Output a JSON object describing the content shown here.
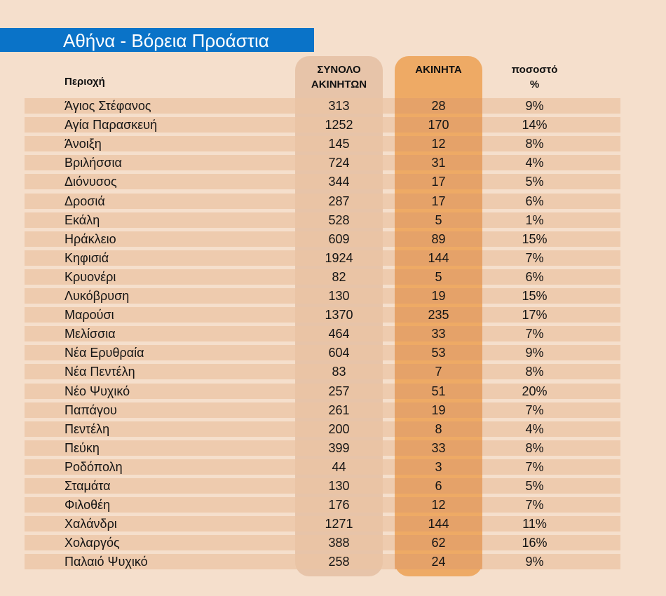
{
  "title": "Αθήνα - Βόρεια Προάστια",
  "colors": {
    "banner": "#0a73c8",
    "background": "#f5dfcc",
    "row_stripe": "#ebc4a4",
    "total_column": "#e4bfa2",
    "idle_column": "#eeaa65"
  },
  "headers": {
    "area": "Περιοχή",
    "total": "ΣΥΝΟΛΟ ΑΚΙΝΗΤΩΝ",
    "idle": "ΑΚΙΝΗΤΑ",
    "pct": "ποσοστό %"
  },
  "chart_data": {
    "type": "table",
    "title": "Αθήνα - Βόρεια Προάστια",
    "columns": [
      "Περιοχή",
      "ΣΥΝΟΛΟ ΑΚΙΝΗΤΩΝ",
      "ΑΚΙΝΗΤΑ",
      "ποσοστό %"
    ],
    "rows": [
      [
        "Άγιος Στέφανος",
        "313",
        "28",
        "9%"
      ],
      [
        "Αγία Παρασκευή",
        "1252",
        "170",
        "14%"
      ],
      [
        "Άνοιξη",
        "145",
        "12",
        "8%"
      ],
      [
        "Βριλήσσια",
        "724",
        "31",
        "4%"
      ],
      [
        "Διόνυσος",
        "344",
        "17",
        "5%"
      ],
      [
        "Δροσιά",
        "287",
        "17",
        "6%"
      ],
      [
        "Εκάλη",
        "528",
        "5",
        "1%"
      ],
      [
        "Ηράκλειο",
        "609",
        "89",
        "15%"
      ],
      [
        "Κηφισιά",
        "1924",
        "144",
        "7%"
      ],
      [
        "Κρυονέρι",
        "82",
        "5",
        "6%"
      ],
      [
        "Λυκόβρυση",
        "130",
        "19",
        "15%"
      ],
      [
        "Μαρούσι",
        "1370",
        "235",
        "17%"
      ],
      [
        "Μελίσσια",
        "464",
        "33",
        "7%"
      ],
      [
        "Νέα Ερυθραία",
        "604",
        "53",
        "9%"
      ],
      [
        "Νέα Πεντέλη",
        "83",
        "7",
        "8%"
      ],
      [
        "Νέο Ψυχικό",
        "257",
        "51",
        "20%"
      ],
      [
        "Παπάγου",
        "261",
        "19",
        "7%"
      ],
      [
        "Πεντέλη",
        "200",
        "8",
        "4%"
      ],
      [
        "Πεύκη",
        "399",
        "33",
        "8%"
      ],
      [
        "Ροδόπολη",
        "44",
        "3",
        "7%"
      ],
      [
        "Σταμάτα",
        "130",
        "6",
        "5%"
      ],
      [
        "Φιλοθέη",
        "176",
        "12",
        "7%"
      ],
      [
        "Χαλάνδρι",
        "1271",
        "144",
        "11%"
      ],
      [
        "Χολαργός",
        "388",
        "62",
        "16%"
      ],
      [
        "Παλαιό Ψυχικό",
        "258",
        "24",
        "9%"
      ]
    ]
  }
}
